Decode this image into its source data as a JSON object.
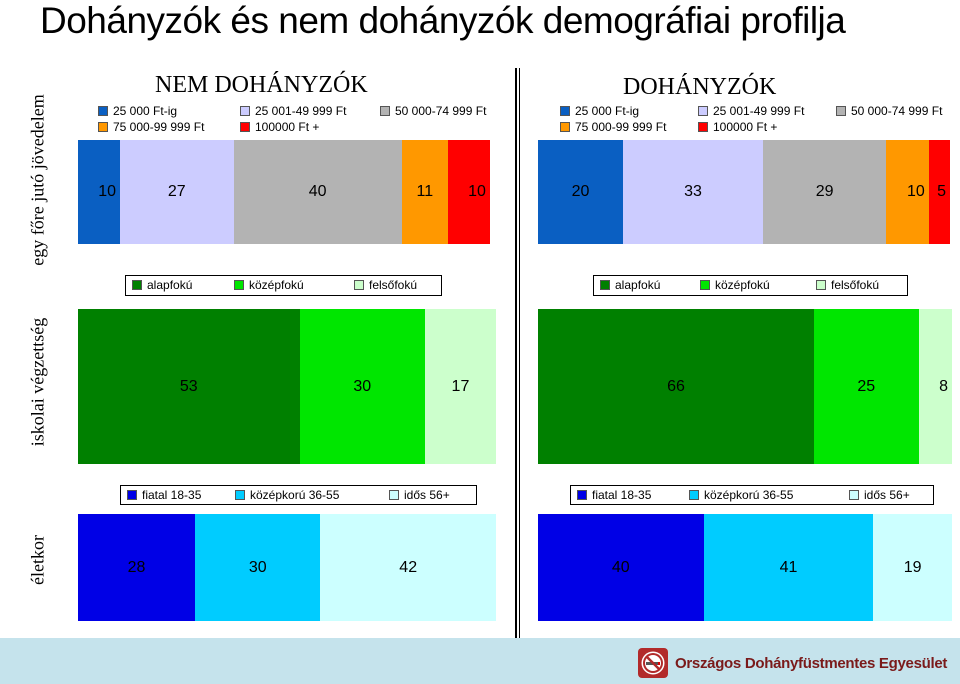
{
  "title": "Dohányzók és nem dohányzók demográfiai profilja",
  "row_labels": {
    "income": "egy főre jutó jövedelem",
    "education": "iskolai végzettség",
    "age": "életkor"
  },
  "groups": {
    "non_smokers": "NEM DOHÁNYZÓK",
    "smokers": "DOHÁNYZÓK"
  },
  "footer": {
    "organization": "Országos Dohányfüstmentes Egyesület",
    "logo_icon": "no-smoking-icon"
  },
  "chart_data": [
    {
      "type": "bar",
      "name": "income-non-smokers",
      "stacked": "100%",
      "categories": [
        "25 000 Ft-ig",
        "25 001-49 999 Ft",
        "50 000-74 999 Ft",
        "75 000-99 999 Ft",
        "100000 Ft +"
      ],
      "values": [
        10,
        27,
        40,
        11,
        10
      ],
      "labels": [
        "10",
        "27",
        "40",
        "11",
        "10"
      ],
      "colors": [
        "#0a5fc2",
        "#ccccff",
        "#b3b3b3",
        "#ff9800",
        "#ff0000"
      ],
      "legend": "top"
    },
    {
      "type": "bar",
      "name": "income-smokers",
      "stacked": "100%",
      "categories": [
        "25 000 Ft-ig",
        "25 001-49 999 Ft",
        "50 000-74 999 Ft",
        "75 000-99 999 Ft",
        "100000 Ft +"
      ],
      "values": [
        20,
        33,
        29,
        10,
        5
      ],
      "labels": [
        "20",
        "33",
        "29",
        "10",
        "5"
      ],
      "colors": [
        "#0a5fc2",
        "#ccccff",
        "#b3b3b3",
        "#ff9800",
        "#ff0000"
      ],
      "legend": "top"
    },
    {
      "type": "bar",
      "name": "education-non-smokers",
      "stacked": "100%",
      "categories": [
        "alapfokú",
        "középfokú",
        "felsőfokú"
      ],
      "values": [
        53,
        30,
        17
      ],
      "labels": [
        "53",
        "30",
        "17"
      ],
      "colors": [
        "#008000",
        "#00e600",
        "#ccffcc"
      ],
      "legend": "top"
    },
    {
      "type": "bar",
      "name": "education-smokers",
      "stacked": "100%",
      "categories": [
        "alapfokú",
        "középfokú",
        "felsőfokú"
      ],
      "values": [
        66,
        25,
        8
      ],
      "labels": [
        "66",
        "25",
        "8"
      ],
      "colors": [
        "#008000",
        "#00e600",
        "#ccffcc"
      ],
      "legend": "top"
    },
    {
      "type": "bar",
      "name": "age-non-smokers",
      "stacked": "100%",
      "categories": [
        "fiatal 18-35",
        "középkorú 36-55",
        "idős 56+"
      ],
      "values": [
        28,
        30,
        42
      ],
      "labels": [
        "28",
        "30",
        "42"
      ],
      "colors": [
        "#0000e6",
        "#00ccff",
        "#ccffff"
      ],
      "legend": "top"
    },
    {
      "type": "bar",
      "name": "age-smokers",
      "stacked": "100%",
      "categories": [
        "fiatal 18-35",
        "középkorú 36-55",
        "idős 56+"
      ],
      "values": [
        40,
        41,
        19
      ],
      "labels": [
        "40",
        "41",
        "19"
      ],
      "colors": [
        "#0000e6",
        "#00ccff",
        "#ccffff"
      ],
      "legend": "top"
    }
  ]
}
